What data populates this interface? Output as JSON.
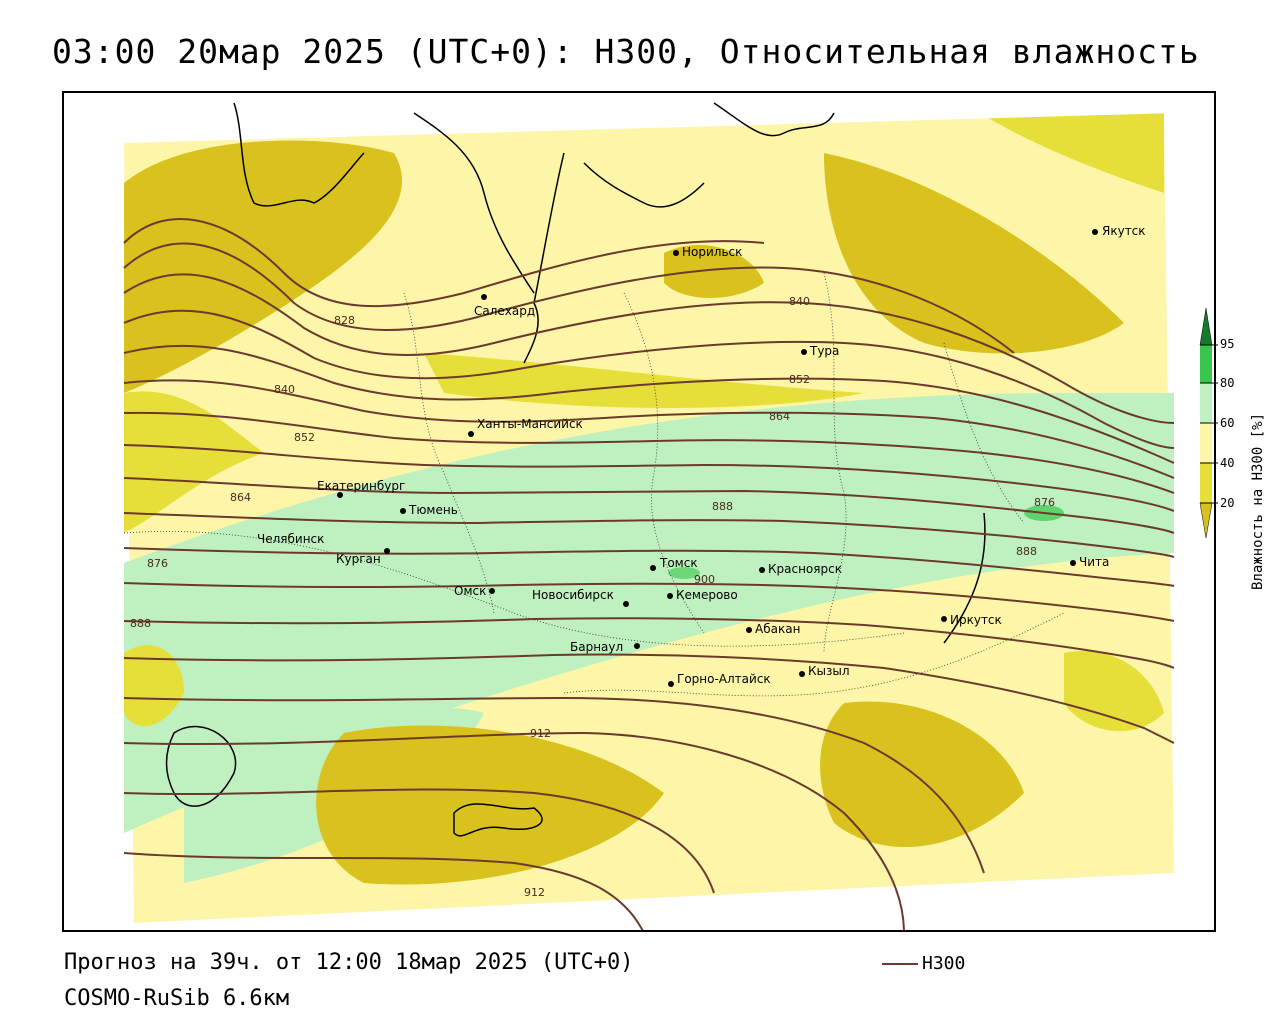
{
  "header": {
    "title": "03:00 20мар 2025 (UTC+0): H300, Относительная влажность"
  },
  "footer": {
    "forecast": "Прогноз на 39ч. от 12:00 18мар 2025 (UTC+0)",
    "model": "COSMO-RuSib 6.6км"
  },
  "line_legend": {
    "label": "H300",
    "color": "#6b3a2c"
  },
  "colorbar": {
    "title": "Влажность на H300 [%]",
    "ticks": [
      "20",
      "40",
      "60",
      "80",
      "95"
    ],
    "colors": {
      "lt20": "#d9c21e",
      "20_40": "#e6df3a",
      "40_60": "#fdf6a8",
      "60_80": "#bff0bf",
      "80_95": "#36c84a",
      "gt95": "#157a2c"
    }
  },
  "cities": [
    {
      "name": "Якутск"
    },
    {
      "name": "Норильск"
    },
    {
      "name": "Салехард"
    },
    {
      "name": "Тура"
    },
    {
      "name": "Ханты-Мансийск"
    },
    {
      "name": "Екатеринбург"
    },
    {
      "name": "Тюмень"
    },
    {
      "name": "Челябинск"
    },
    {
      "name": "Курган"
    },
    {
      "name": "Омск"
    },
    {
      "name": "Новосибирск"
    },
    {
      "name": "Томск"
    },
    {
      "name": "Кемерово"
    },
    {
      "name": "Красноярск"
    },
    {
      "name": "Абакан"
    },
    {
      "name": "Барнаул"
    },
    {
      "name": "Горно-Алтайск"
    },
    {
      "name": "Кызыл"
    },
    {
      "name": "Иркутск"
    },
    {
      "name": "Чита"
    }
  ],
  "contour_labels": [
    "828",
    "840",
    "840",
    "852",
    "852",
    "864",
    "864",
    "876",
    "876",
    "888",
    "888",
    "888",
    "900",
    "912",
    "912"
  ]
}
